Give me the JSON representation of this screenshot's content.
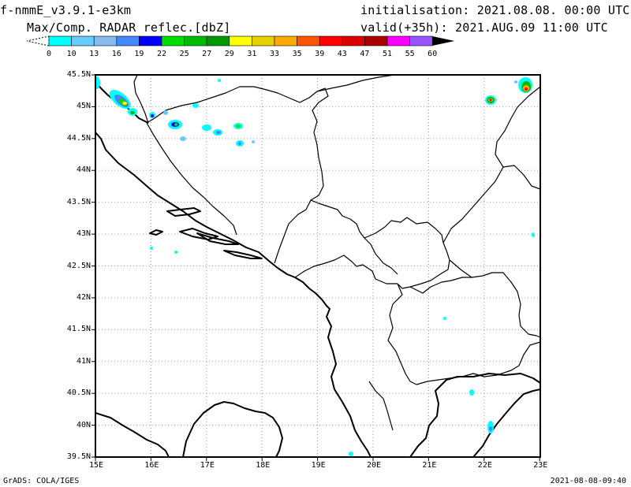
{
  "header": {
    "model": "f-nmmE_v3.9.1-e3km",
    "field": "Max/Comp. RADAR reflec.[dbZ]",
    "init": "initialisation: 2021.08.08. 00:00 UTC",
    "valid": "valid(+35h): 2021.AUG.09 11:00 UTC"
  },
  "colorbar": {
    "labels": [
      "0",
      "10",
      "13",
      "16",
      "19",
      "22",
      "25",
      "27",
      "29",
      "31",
      "33",
      "35",
      "39",
      "43",
      "47",
      "51",
      "55",
      "60"
    ],
    "colors": [
      "#00ffff",
      "#66ccff",
      "#88bbee",
      "#4488ff",
      "#0000ff",
      "#00dd00",
      "#00bb00",
      "#009900",
      "#ffff00",
      "#e8d000",
      "#ffaa00",
      "#ff5500",
      "#ff0000",
      "#dd0000",
      "#aa0000",
      "#ff00ff",
      "#9955ff"
    ]
  },
  "map": {
    "lat_labels": [
      "45.5N",
      "45N",
      "44.5N",
      "44N",
      "43.5N",
      "43N",
      "42.5N",
      "42N",
      "41.5N",
      "41N",
      "40.5N",
      "40N",
      "39.5N"
    ],
    "lon_labels": [
      "15E",
      "16E",
      "17E",
      "18E",
      "19E",
      "20E",
      "21E",
      "22E",
      "23E"
    ]
  },
  "footer": {
    "left": "GrADS: COLA/IGES",
    "right": "2021-08-08-09:40"
  }
}
